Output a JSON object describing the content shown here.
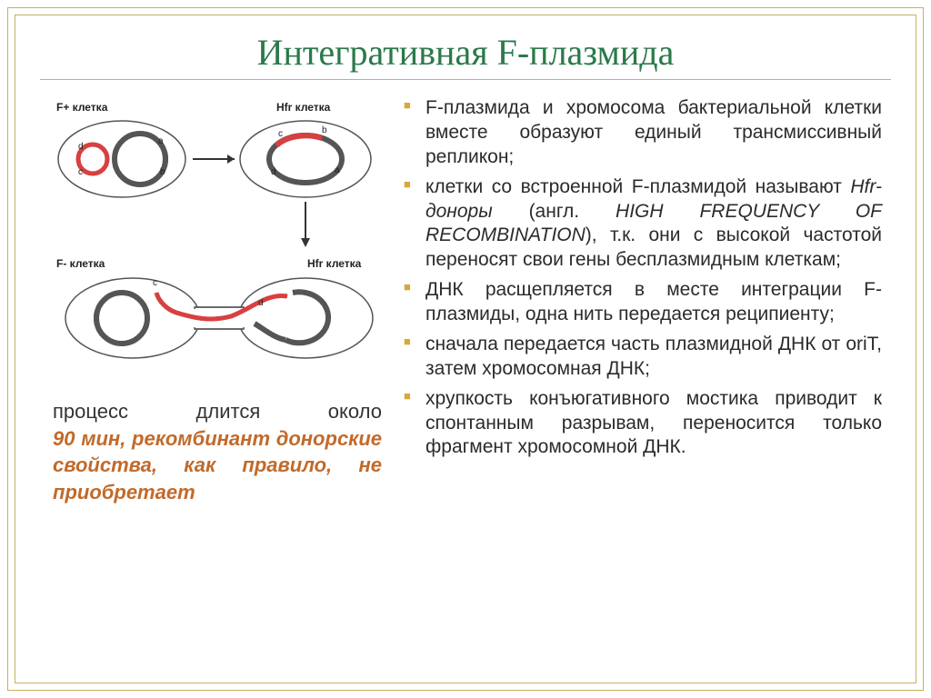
{
  "title": "Интегративная F-плазмида",
  "diagram": {
    "labels": {
      "f_plus": "F+ клетка",
      "hfr_top": "Hfr клетка",
      "f_minus": "F- клетка",
      "hfr_bottom": "Hfr клетка",
      "a": "a",
      "b": "b",
      "c": "c",
      "d": "d"
    },
    "colors": {
      "cell_stroke": "#555555",
      "chromosome": "#555555",
      "plasmid": "#d84040",
      "arrow": "#333333",
      "background": "#ffffff"
    }
  },
  "caption": {
    "line1": "процесс длится около",
    "rest": "90 мин, рекомбинант донорские свойства, как правило, не приобретает"
  },
  "bullets": [
    "F-плазмида и хромосома бактериальной клетки вместе образуют единый трансмиссивный репликон;",
    "клетки со встроенной F-плазмидой называют Hfr-доноры (англ. HIGH FREQUENCY OF RECOMBINATION), т.к. они с высокой частотой переносят свои гены бесплазмидным клеткам;",
    "ДНК расщепляется в месте интеграции F-плазмиды, одна нить передается реципиенту;",
    "сначала передается часть плазмидной ДНК от oriT, затем хромосомная ДНК;",
    "хрупкость конъюгативного мостика приводит к спонтанным разрывам, переносится только фрагмент хромосомной ДНК."
  ],
  "style": {
    "title_color": "#2a7a4a",
    "title_font": "Times New Roman",
    "title_size_pt": 30,
    "bullet_marker_color": "#d8a838",
    "body_font": "Arial",
    "body_size_pt": 16,
    "caption_accent_color": "#c26a2a",
    "frame_color": "#c9b060",
    "page_bg": "#ffffff"
  }
}
